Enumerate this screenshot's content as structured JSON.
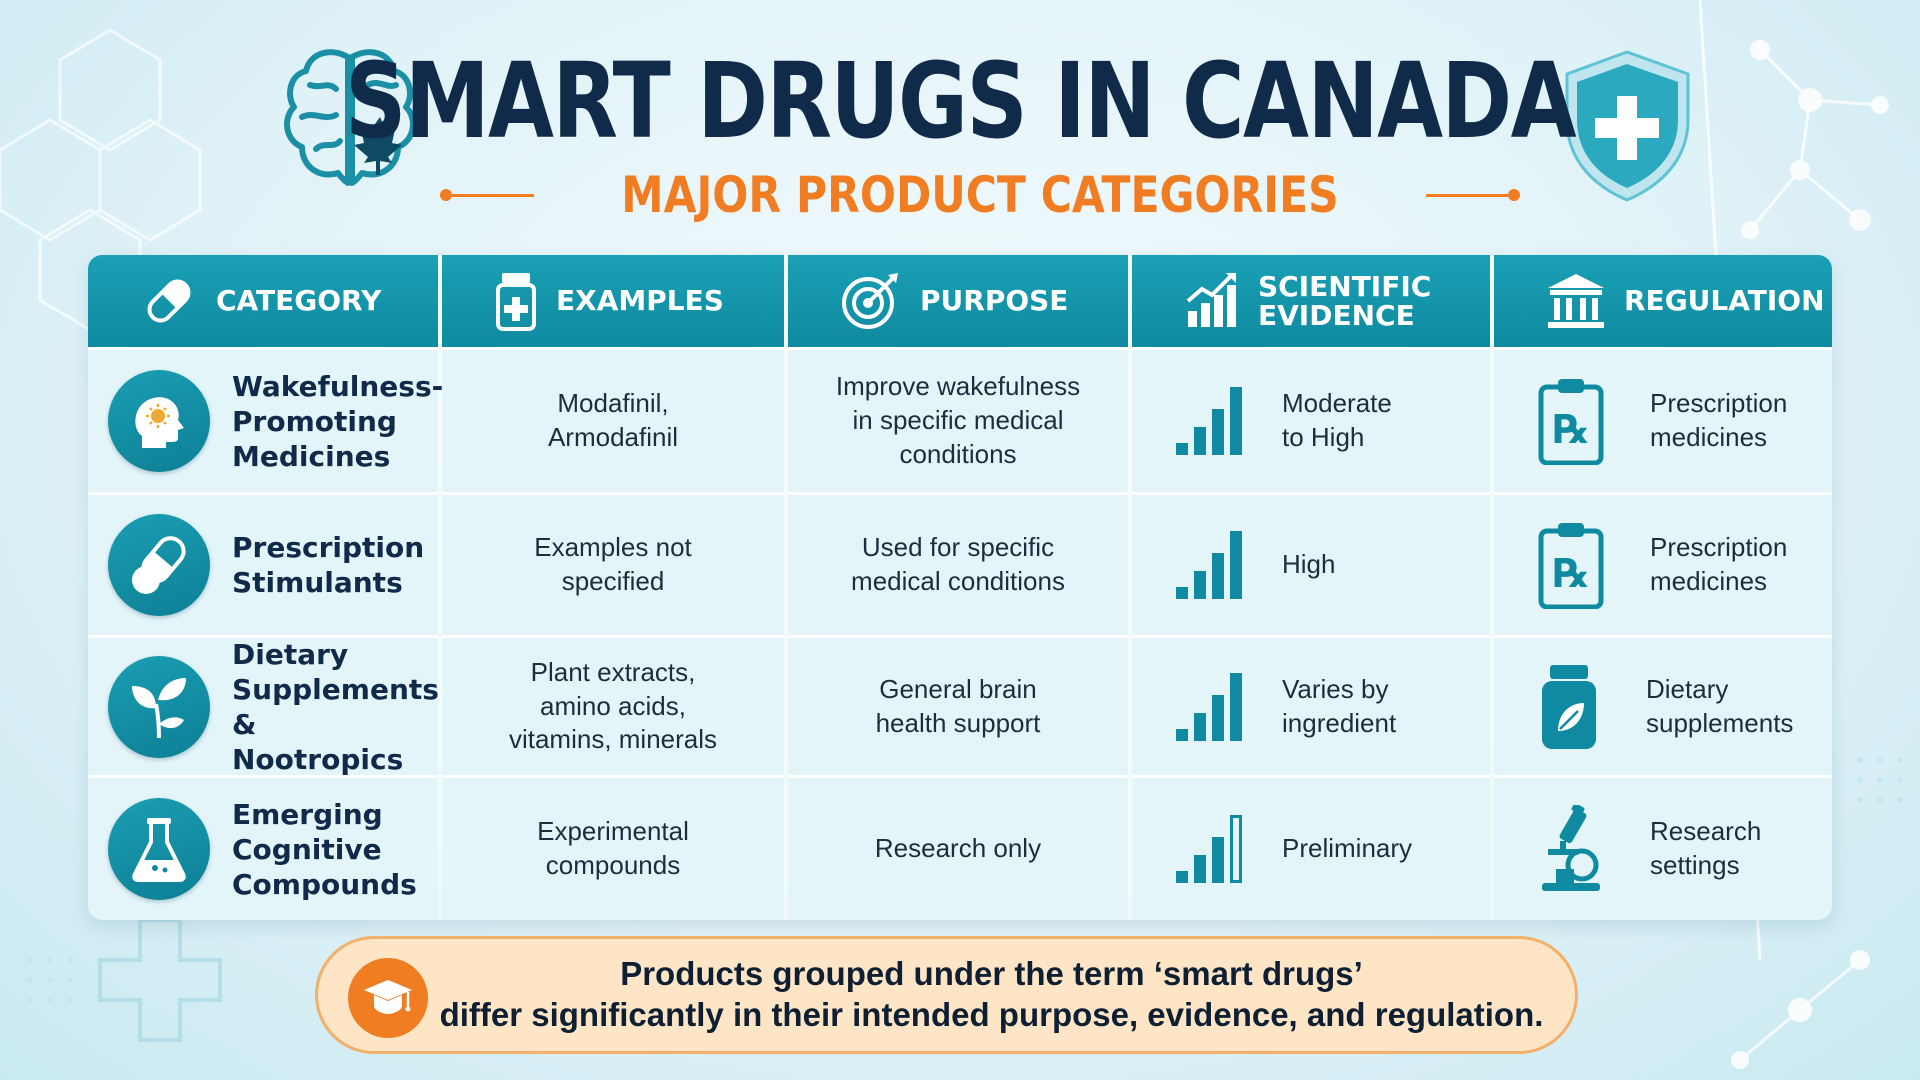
{
  "header": {
    "title": "SMART DRUGS IN CANADA",
    "subtitle": "MAJOR PRODUCT CATEGORIES"
  },
  "colors": {
    "accent_teal": "#1397ad",
    "accent_orange": "#f07d22",
    "title_navy": "#102a4a",
    "banner_bg": "#fde5c6"
  },
  "table": {
    "headers": [
      {
        "label": "CATEGORY",
        "icon": "capsule-icon"
      },
      {
        "label": "EXAMPLES",
        "icon": "medicine-bottle-icon"
      },
      {
        "label": "PURPOSE",
        "icon": "target-icon"
      },
      {
        "label": "SCIENTIFIC\nEVIDENCE",
        "icon": "growth-chart-icon"
      },
      {
        "label": "REGULATION",
        "icon": "government-building-icon"
      }
    ],
    "rows": [
      {
        "category": "Wakefulness-\nPromoting\nMedicines",
        "category_icon": "head-sun-icon",
        "examples": "Modafinil,\nArmodafinil",
        "purpose": "Improve wakefulness\nin specific medical\nconditions",
        "evidence": "Moderate\nto High",
        "evidence_level": 4,
        "regulation": "Prescription\nmedicines",
        "regulation_icon": "prescription-clipboard-icon"
      },
      {
        "category": "Prescription\nStimulants",
        "category_icon": "pills-icon",
        "examples": "Examples not\nspecified",
        "purpose": "Used for specific\nmedical conditions",
        "evidence": "High",
        "evidence_level": 4,
        "regulation": "Prescription\nmedicines",
        "regulation_icon": "prescription-clipboard-icon"
      },
      {
        "category": "Dietary\nSupplements &\nNootropics",
        "category_icon": "plant-icon",
        "examples": "Plant extracts,\namino acids,\nvitamins, minerals",
        "purpose": "General brain\nhealth support",
        "evidence": "Varies by\ningredient",
        "evidence_level": 4,
        "regulation": "Dietary\nsupplements",
        "regulation_icon": "supplement-jar-icon"
      },
      {
        "category": "Emerging\nCognitive\nCompounds",
        "category_icon": "flask-icon",
        "examples": "Experimental\ncompounds",
        "purpose": "Research only",
        "evidence": "Preliminary",
        "evidence_level": 3,
        "regulation": "Research\nsettings",
        "regulation_icon": "microscope-icon"
      }
    ]
  },
  "banner": {
    "icon": "graduation-cap-icon",
    "text": "Products grouped under the term ‘smart drugs’\ndiffer significantly in their intended purpose, evidence, and regulation."
  }
}
